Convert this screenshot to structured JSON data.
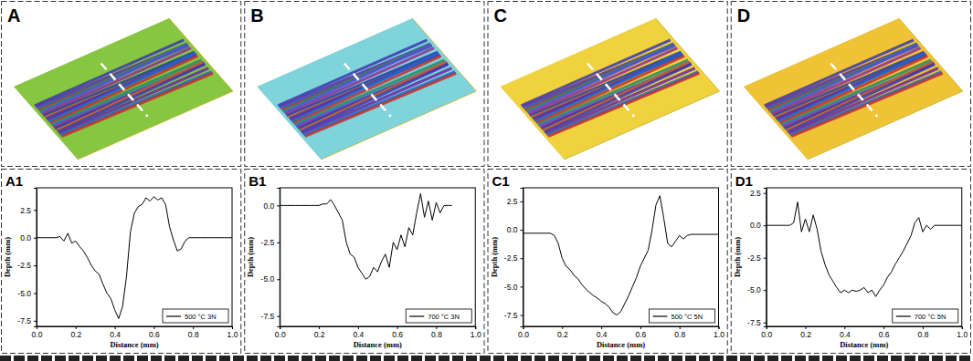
{
  "panel_labels": [
    "A",
    "B",
    "C",
    "D"
  ],
  "chart_data": [
    {
      "type": "line",
      "panel_label": "A1",
      "xlabel": "Distance (mm)",
      "ylabel": "Depth (mm)",
      "legend": "lower right",
      "x": [
        0,
        0.02,
        0.04,
        0.06,
        0.08,
        0.1,
        0.12,
        0.14,
        0.16,
        0.18,
        0.2,
        0.22,
        0.24,
        0.26,
        0.28,
        0.3,
        0.32,
        0.34,
        0.36,
        0.38,
        0.4,
        0.42,
        0.44,
        0.46,
        0.48,
        0.5,
        0.52,
        0.54,
        0.56,
        0.58,
        0.6,
        0.62,
        0.64,
        0.66,
        0.68,
        0.7,
        0.72,
        0.74,
        0.76,
        0.78,
        0.8,
        0.82,
        0.84,
        0.86,
        0.88,
        0.9,
        0.92,
        0.94,
        0.96,
        0.98,
        1.0
      ],
      "series": [
        {
          "name": "500 °C 3N",
          "color": "#000000",
          "values": [
            0,
            0,
            0,
            0,
            0,
            0,
            0.1,
            -0.3,
            0.4,
            -0.5,
            -0.3,
            -0.8,
            -1.2,
            -1.8,
            -2.5,
            -3.0,
            -3.3,
            -4.2,
            -5.0,
            -5.5,
            -6.5,
            -7.3,
            -6.2,
            -3.5,
            0.5,
            2.2,
            2.8,
            3.0,
            3.6,
            3.3,
            3.7,
            3.4,
            3.6,
            3.0,
            1.0,
            -0.2,
            -1.2,
            -1.0,
            -0.3,
            0,
            0,
            0,
            0,
            0,
            0,
            0,
            0,
            0,
            0,
            0,
            0
          ]
        }
      ],
      "xlim": [
        0,
        1
      ],
      "xticks": [
        {
          "value": 0,
          "label": "0.0"
        },
        0.2,
        0.4,
        0.6,
        0.8,
        {
          "value": 1,
          "label": "1.0"
        }
      ],
      "ylim": [
        -8,
        4.5
      ],
      "yticks": [
        -7.5,
        {
          "value": -5,
          "label": "-5.0"
        },
        -2.5,
        {
          "value": 0,
          "label": "0.0"
        },
        2.5
      ]
    },
    {
      "type": "line",
      "panel_label": "B1",
      "xlabel": "Distance (mm)",
      "ylabel": "Depth (mm)",
      "legend": "lower right",
      "x": [
        0,
        0.02,
        0.04,
        0.06,
        0.08,
        0.1,
        0.12,
        0.14,
        0.16,
        0.18,
        0.2,
        0.22,
        0.24,
        0.26,
        0.28,
        0.3,
        0.32,
        0.34,
        0.36,
        0.38,
        0.4,
        0.42,
        0.44,
        0.46,
        0.48,
        0.5,
        0.52,
        0.54,
        0.56,
        0.58,
        0.6,
        0.62,
        0.64,
        0.66,
        0.68,
        0.7,
        0.72,
        0.74,
        0.76,
        0.78,
        0.8,
        0.82,
        0.84,
        0.86,
        0.88
      ],
      "series": [
        {
          "name": "700 °C 3N",
          "color": "#000000",
          "values": [
            0,
            0,
            0,
            0,
            0,
            0,
            0,
            0,
            0,
            0,
            0,
            0.1,
            0.1,
            0.4,
            0,
            -0.5,
            -1.0,
            -2.5,
            -3.3,
            -3.5,
            -4.2,
            -4.6,
            -5.0,
            -4.8,
            -4.2,
            -4.5,
            -3.8,
            -3.3,
            -4.2,
            -2.5,
            -3.0,
            -2.0,
            -2.8,
            -1.5,
            -2.0,
            -0.5,
            0.8,
            -0.8,
            0.3,
            -1.0,
            0.2,
            -0.5,
            0,
            0,
            0
          ]
        }
      ],
      "xlim": [
        0,
        1
      ],
      "xticks": [
        {
          "value": 0,
          "label": "0.0"
        },
        0.2,
        0.4,
        0.6,
        0.8,
        {
          "value": 1,
          "label": "1.0"
        }
      ],
      "ylim": [
        -8.2,
        1.2
      ],
      "yticks": [
        -7.5,
        {
          "value": -5,
          "label": "-5.0"
        },
        -2.5,
        {
          "value": 0,
          "label": "0.0"
        }
      ]
    },
    {
      "type": "line",
      "panel_label": "C1",
      "xlabel": "Distance (mm)",
      "ylabel": "Depth (mm)",
      "legend": "lower right",
      "x": [
        0,
        0.02,
        0.04,
        0.06,
        0.08,
        0.1,
        0.12,
        0.14,
        0.16,
        0.18,
        0.2,
        0.22,
        0.24,
        0.26,
        0.28,
        0.3,
        0.32,
        0.34,
        0.36,
        0.38,
        0.4,
        0.42,
        0.44,
        0.46,
        0.48,
        0.5,
        0.52,
        0.54,
        0.56,
        0.58,
        0.6,
        0.62,
        0.64,
        0.66,
        0.68,
        0.7,
        0.72,
        0.74,
        0.76,
        0.78,
        0.8,
        0.82,
        0.84,
        0.86,
        0.88,
        0.9,
        0.92,
        0.94,
        0.96,
        0.98,
        1.0
      ],
      "series": [
        {
          "name": "500 °C 5N",
          "color": "#000000",
          "values": [
            -0.3,
            -0.3,
            -0.3,
            -0.3,
            -0.3,
            -0.3,
            -0.3,
            -0.3,
            -0.5,
            -1.2,
            -2.5,
            -3.2,
            -3.5,
            -4.0,
            -4.3,
            -4.8,
            -5.2,
            -5.5,
            -5.8,
            -6.0,
            -6.3,
            -6.5,
            -6.8,
            -7.3,
            -7.5,
            -7.2,
            -6.5,
            -5.8,
            -5.0,
            -4.2,
            -3.2,
            -2.5,
            -1.8,
            0.0,
            2.2,
            3.0,
            1.0,
            -1.2,
            -1.5,
            -1.0,
            -0.5,
            -0.8,
            -0.5,
            -0.4,
            -0.4,
            -0.4,
            -0.4,
            -0.4,
            -0.4,
            -0.4,
            -0.4
          ]
        }
      ],
      "xlim": [
        0,
        1
      ],
      "xticks": [
        {
          "value": 0,
          "label": "0.0"
        },
        0.2,
        0.4,
        0.6,
        0.8,
        {
          "value": 1,
          "label": "1.0"
        }
      ],
      "ylim": [
        -8.5,
        3.7
      ],
      "yticks": [
        -7.5,
        {
          "value": -5,
          "label": "-5.0"
        },
        -2.5,
        {
          "value": 0,
          "label": "0.0"
        },
        2.5
      ]
    },
    {
      "type": "line",
      "panel_label": "D1",
      "xlabel": "Distance (mm)",
      "ylabel": "Depth (mm)",
      "legend": "lower right",
      "x": [
        0,
        0.02,
        0.04,
        0.06,
        0.08,
        0.1,
        0.12,
        0.14,
        0.16,
        0.18,
        0.2,
        0.22,
        0.24,
        0.26,
        0.28,
        0.3,
        0.32,
        0.34,
        0.36,
        0.38,
        0.4,
        0.42,
        0.44,
        0.46,
        0.48,
        0.5,
        0.52,
        0.54,
        0.56,
        0.58,
        0.6,
        0.62,
        0.64,
        0.66,
        0.68,
        0.7,
        0.72,
        0.74,
        0.76,
        0.78,
        0.8,
        0.82,
        0.84,
        0.86,
        0.88,
        0.9,
        0.92,
        0.94,
        0.96,
        0.98,
        1.0
      ],
      "series": [
        {
          "name": "700 °C 5N",
          "color": "#000000",
          "values": [
            0,
            0,
            0,
            0,
            0,
            0,
            0,
            0.2,
            1.8,
            -0.5,
            0.5,
            -0.5,
            0.8,
            -0.3,
            -2.0,
            -3.0,
            -3.8,
            -4.3,
            -4.8,
            -5.2,
            -5.0,
            -5.2,
            -5.0,
            -5.1,
            -5.0,
            -4.8,
            -5.2,
            -5.0,
            -5.5,
            -5.0,
            -4.6,
            -4.0,
            -3.6,
            -3.0,
            -2.5,
            -2.0,
            -1.4,
            -0.8,
            0.2,
            0.6,
            -0.5,
            0,
            -0.3,
            0,
            0,
            0,
            0,
            0,
            0,
            0,
            0
          ]
        }
      ],
      "xlim": [
        0,
        1
      ],
      "xticks": [
        {
          "value": 0,
          "label": "0.0"
        },
        0.2,
        0.4,
        0.6,
        0.8,
        {
          "value": 1,
          "label": "1.0"
        }
      ],
      "ylim": [
        -7.8,
        2.9
      ],
      "yticks": [
        -7.5,
        {
          "value": -5,
          "label": "-5.0"
        },
        -2.5,
        {
          "value": 0,
          "label": "0.0"
        },
        2.5
      ]
    }
  ]
}
